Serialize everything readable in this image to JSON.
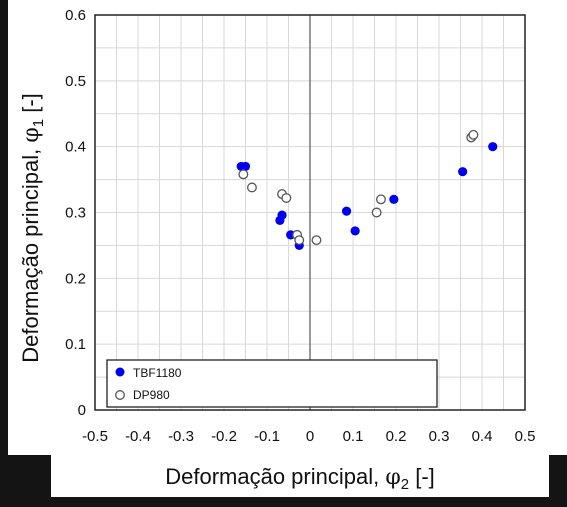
{
  "chart_data": {
    "type": "scatter",
    "title": "",
    "xlabel": {
      "prefix": "Deformação principal, ",
      "symbol": "φ",
      "sub": "2",
      "suffix": " [-]"
    },
    "ylabel": {
      "prefix": "Deformação principal, ",
      "symbol": "φ",
      "sub": "1",
      "suffix": " [-]"
    },
    "xlim": [
      -0.5,
      0.5
    ],
    "ylim": [
      0,
      0.6
    ],
    "xticks": [
      -0.5,
      -0.4,
      -0.3,
      -0.2,
      -0.1,
      0,
      0.1,
      0.2,
      0.3,
      0.4,
      0.5
    ],
    "yticks": [
      0,
      0.1,
      0.2,
      0.3,
      0.4,
      0.5,
      0.6
    ],
    "xtick_labels": [
      "-0.5",
      "-0.4",
      "-0.3",
      "-0.2",
      "-0.1",
      "0",
      "0.1",
      "0.2",
      "0.3",
      "0.4",
      "0.5"
    ],
    "ytick_labels": [
      "0",
      "0.1",
      "0.2",
      "0.3",
      "0.4",
      "0.5",
      "0.6"
    ],
    "grid": true,
    "legend_position": "bottom-left",
    "series": [
      {
        "name": "TBF1180",
        "marker": "filled-circle",
        "color": "#0000ee",
        "points": [
          [
            -0.16,
            0.37
          ],
          [
            -0.15,
            0.37
          ],
          [
            -0.07,
            0.288
          ],
          [
            -0.065,
            0.296
          ],
          [
            -0.045,
            0.266
          ],
          [
            -0.025,
            0.25
          ],
          [
            0.085,
            0.302
          ],
          [
            0.105,
            0.272
          ],
          [
            0.195,
            0.32
          ],
          [
            0.355,
            0.362
          ],
          [
            0.425,
            0.4
          ]
        ]
      },
      {
        "name": "DP980",
        "marker": "open-circle",
        "color": "#555555",
        "points": [
          [
            -0.155,
            0.358
          ],
          [
            -0.135,
            0.338
          ],
          [
            -0.065,
            0.328
          ],
          [
            -0.055,
            0.322
          ],
          [
            -0.03,
            0.266
          ],
          [
            -0.025,
            0.258
          ],
          [
            0.015,
            0.258
          ],
          [
            0.155,
            0.3
          ],
          [
            0.165,
            0.32
          ],
          [
            0.375,
            0.414
          ],
          [
            0.38,
            0.418
          ]
        ]
      }
    ]
  },
  "colors": {
    "dark_band": "#141414",
    "grid": "#d8d8d8",
    "axis": "#222222",
    "zero_line": "#555555"
  }
}
